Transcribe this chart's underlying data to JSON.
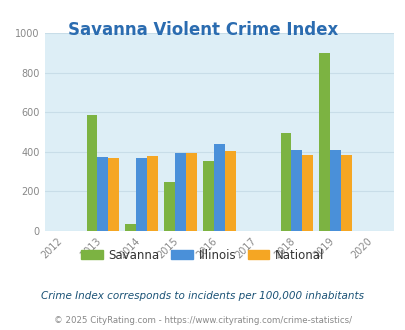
{
  "title": "Savanna Violent Crime Index",
  "title_color": "#2b6cb0",
  "title_fontsize": 12,
  "data_years": [
    2013,
    2014,
    2015,
    2016,
    2018,
    2019
  ],
  "savanna": [
    585,
    35,
    245,
    355,
    495,
    900
  ],
  "illinois": [
    375,
    370,
    393,
    440,
    408,
    407
  ],
  "national": [
    370,
    380,
    395,
    405,
    383,
    383
  ],
  "savanna_color": "#7cb342",
  "illinois_color": "#4a90d9",
  "national_color": "#f5a623",
  "plot_bg_color": "#ddeef6",
  "fig_bg_color": "#ffffff",
  "bar_width": 0.28,
  "ylim": [
    0,
    1000
  ],
  "yticks": [
    0,
    200,
    400,
    600,
    800,
    1000
  ],
  "xlim": [
    2011.5,
    2020.5
  ],
  "xticks": [
    2012,
    2013,
    2014,
    2015,
    2016,
    2017,
    2018,
    2019,
    2020
  ],
  "legend_labels": [
    "Savanna",
    "Illinois",
    "National"
  ],
  "footnote1": "Crime Index corresponds to incidents per 100,000 inhabitants",
  "footnote2": "© 2025 CityRating.com - https://www.cityrating.com/crime-statistics/",
  "footnote1_color": "#1a5276",
  "footnote2_color": "#888888",
  "tick_color": "#888888",
  "grid_color": "#c8dde8"
}
